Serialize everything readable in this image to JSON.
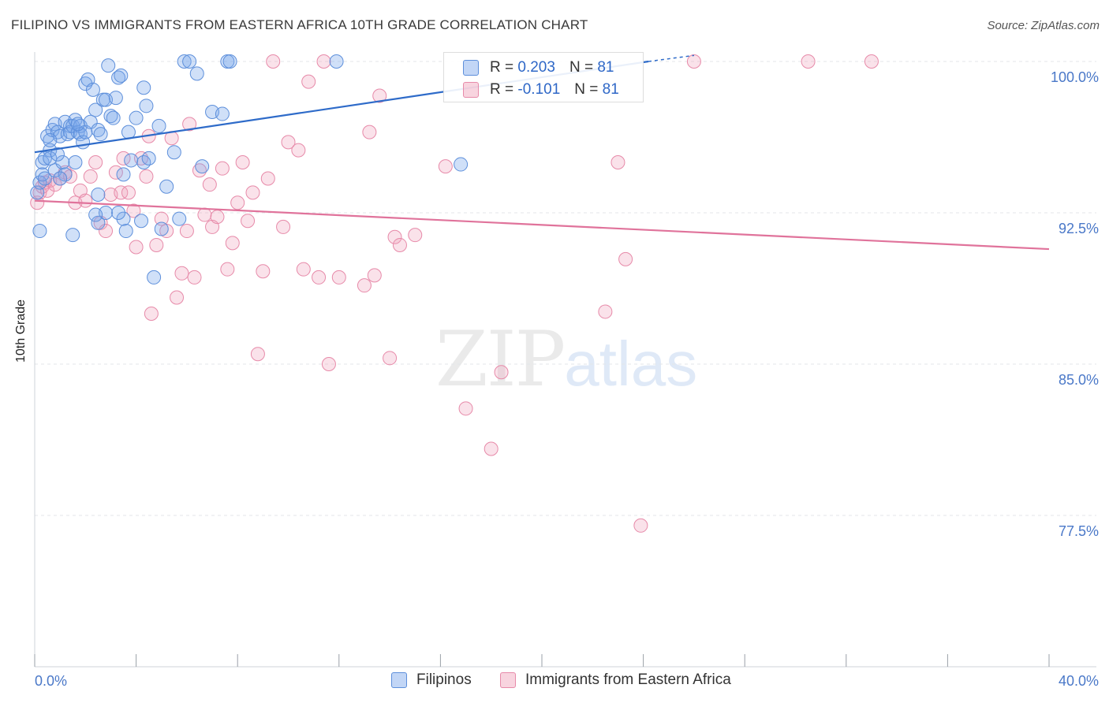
{
  "title": "FILIPINO VS IMMIGRANTS FROM EASTERN AFRICA 10TH GRADE CORRELATION CHART",
  "source": "Source: ZipAtlas.com",
  "watermark": {
    "zip": "ZIP",
    "atlas": "atlas"
  },
  "legend_top": {
    "row1": {
      "r_label": "R =",
      "r_value": "0.203",
      "n_label": "N =",
      "n_value": "81"
    },
    "row2": {
      "r_label": "R =",
      "r_value": "-0.101",
      "n_label": "N =",
      "n_value": "81"
    }
  },
  "colors": {
    "blue_fill": "rgba(120,165,235,0.35)",
    "blue_stroke": "#5d8fdb",
    "blue_line": "#2e6bc9",
    "pink_fill": "rgba(240,160,185,0.30)",
    "pink_stroke": "#e78aa9",
    "pink_line": "#e0739b",
    "grid": "#e3e6ea",
    "tick": "#4a78c8"
  },
  "chart_data": {
    "type": "scatter",
    "title": "FILIPINO VS IMMIGRANTS FROM EASTERN AFRICA 10TH GRADE CORRELATION CHART",
    "xlabel": "",
    "ylabel": "10th Grade",
    "xlim": [
      0,
      40
    ],
    "ylim": [
      70.0,
      101.0
    ],
    "x_tick_labels": [
      "0.0%",
      "40.0%"
    ],
    "y_ticks": [
      77.5,
      85.0,
      92.5,
      100.0
    ],
    "y_tick_labels": [
      "77.5%",
      "85.0%",
      "92.5%",
      "100.0%"
    ],
    "grid": true,
    "legend_position": "bottom",
    "series": [
      {
        "name": "Filipinos",
        "color": "blue",
        "r": 0.203,
        "n": 81,
        "trend": {
          "x": [
            0,
            24.2
          ],
          "y": [
            95.5,
            100.0
          ]
        },
        "points": [
          [
            0.1,
            93.5
          ],
          [
            0.2,
            94.0
          ],
          [
            0.2,
            91.6
          ],
          [
            0.3,
            95.0
          ],
          [
            0.3,
            94.4
          ],
          [
            0.4,
            95.2
          ],
          [
            0.5,
            96.3
          ],
          [
            0.6,
            95.6
          ],
          [
            0.6,
            95.2
          ],
          [
            0.7,
            96.6
          ],
          [
            0.8,
            96.9
          ],
          [
            0.8,
            94.6
          ],
          [
            0.9,
            96.5
          ],
          [
            1.0,
            96.3
          ],
          [
            1.1,
            95.0
          ],
          [
            1.2,
            97.0
          ],
          [
            1.2,
            94.4
          ],
          [
            1.3,
            96.4
          ],
          [
            1.4,
            96.8
          ],
          [
            1.4,
            96.5
          ],
          [
            1.5,
            96.8
          ],
          [
            1.6,
            97.1
          ],
          [
            1.6,
            95.0
          ],
          [
            1.7,
            96.5
          ],
          [
            1.8,
            96.8
          ],
          [
            1.8,
            96.4
          ],
          [
            1.9,
            96.0
          ],
          [
            2.0,
            98.9
          ],
          [
            2.0,
            96.5
          ],
          [
            2.1,
            99.1
          ],
          [
            2.2,
            97.0
          ],
          [
            2.3,
            98.6
          ],
          [
            2.4,
            97.6
          ],
          [
            2.5,
            96.6
          ],
          [
            2.5,
            93.4
          ],
          [
            2.6,
            96.4
          ],
          [
            2.7,
            98.1
          ],
          [
            2.8,
            98.1
          ],
          [
            2.9,
            99.8
          ],
          [
            3.0,
            97.3
          ],
          [
            3.1,
            97.2
          ],
          [
            3.2,
            98.2
          ],
          [
            3.3,
            99.2
          ],
          [
            3.4,
            99.3
          ],
          [
            3.5,
            94.4
          ],
          [
            3.6,
            91.6
          ],
          [
            3.7,
            96.5
          ],
          [
            3.8,
            95.1
          ],
          [
            4.0,
            97.2
          ],
          [
            4.2,
            92.1
          ],
          [
            4.3,
            95.0
          ],
          [
            4.4,
            97.8
          ],
          [
            4.5,
            95.2
          ],
          [
            4.7,
            89.3
          ],
          [
            4.9,
            96.8
          ],
          [
            5.0,
            91.7
          ],
          [
            5.2,
            93.8
          ],
          [
            5.5,
            95.5
          ],
          [
            5.7,
            92.2
          ],
          [
            5.9,
            100.0
          ],
          [
            6.1,
            100.0
          ],
          [
            6.4,
            99.4
          ],
          [
            6.6,
            94.8
          ],
          [
            7.0,
            97.5
          ],
          [
            7.4,
            97.4
          ],
          [
            7.6,
            100.0
          ],
          [
            7.7,
            100.0
          ],
          [
            11.9,
            100.0
          ],
          [
            16.8,
            94.9
          ],
          [
            2.5,
            92.0
          ],
          [
            3.5,
            92.2
          ],
          [
            1.5,
            91.4
          ],
          [
            2.8,
            92.5
          ],
          [
            0.4,
            94.2
          ],
          [
            1.0,
            94.2
          ],
          [
            0.6,
            96.1
          ],
          [
            3.3,
            92.5
          ],
          [
            4.3,
            98.7
          ],
          [
            2.4,
            92.4
          ],
          [
            1.7,
            96.9
          ],
          [
            0.9,
            95.4
          ]
        ]
      },
      {
        "name": "Immigrants from Eastern Africa",
        "color": "pink",
        "r": -0.101,
        "n": 81,
        "trend": {
          "x": [
            0,
            40
          ],
          "y": [
            93.1,
            90.7
          ]
        },
        "points": [
          [
            0.1,
            93.0
          ],
          [
            0.2,
            93.5
          ],
          [
            0.3,
            93.8
          ],
          [
            0.4,
            94.0
          ],
          [
            0.5,
            93.6
          ],
          [
            0.6,
            94.1
          ],
          [
            0.8,
            93.9
          ],
          [
            1.0,
            94.2
          ],
          [
            1.2,
            94.5
          ],
          [
            1.4,
            94.3
          ],
          [
            1.6,
            93.0
          ],
          [
            1.8,
            93.6
          ],
          [
            2.0,
            93.1
          ],
          [
            2.2,
            94.3
          ],
          [
            2.4,
            95.0
          ],
          [
            2.6,
            92.0
          ],
          [
            2.8,
            91.6
          ],
          [
            3.0,
            93.4
          ],
          [
            3.2,
            94.5
          ],
          [
            3.4,
            93.5
          ],
          [
            3.5,
            95.2
          ],
          [
            3.7,
            93.5
          ],
          [
            3.9,
            92.6
          ],
          [
            4.0,
            90.8
          ],
          [
            4.2,
            95.2
          ],
          [
            4.4,
            94.3
          ],
          [
            4.5,
            96.3
          ],
          [
            4.6,
            87.5
          ],
          [
            4.8,
            90.9
          ],
          [
            5.0,
            92.2
          ],
          [
            5.2,
            91.6
          ],
          [
            5.4,
            96.2
          ],
          [
            5.6,
            88.3
          ],
          [
            5.8,
            89.5
          ],
          [
            6.0,
            91.6
          ],
          [
            6.1,
            96.9
          ],
          [
            6.3,
            89.3
          ],
          [
            6.5,
            94.6
          ],
          [
            6.7,
            92.4
          ],
          [
            6.9,
            93.9
          ],
          [
            7.0,
            91.8
          ],
          [
            7.2,
            92.3
          ],
          [
            7.4,
            94.7
          ],
          [
            7.6,
            89.7
          ],
          [
            7.8,
            91.0
          ],
          [
            8.0,
            93.0
          ],
          [
            8.2,
            95.0
          ],
          [
            8.4,
            92.1
          ],
          [
            8.6,
            93.5
          ],
          [
            8.8,
            85.5
          ],
          [
            9.0,
            89.6
          ],
          [
            9.2,
            94.2
          ],
          [
            9.4,
            100.0
          ],
          [
            9.8,
            91.8
          ],
          [
            10.0,
            96.0
          ],
          [
            10.4,
            95.6
          ],
          [
            10.6,
            89.7
          ],
          [
            10.8,
            99.0
          ],
          [
            11.2,
            89.3
          ],
          [
            11.4,
            100.0
          ],
          [
            11.6,
            85.0
          ],
          [
            12.0,
            89.3
          ],
          [
            13.0,
            88.9
          ],
          [
            13.2,
            96.5
          ],
          [
            13.4,
            89.4
          ],
          [
            13.6,
            98.3
          ],
          [
            14.0,
            85.3
          ],
          [
            14.2,
            91.3
          ],
          [
            14.4,
            90.9
          ],
          [
            15.0,
            91.4
          ],
          [
            16.2,
            94.8
          ],
          [
            17.0,
            82.8
          ],
          [
            18.0,
            80.8
          ],
          [
            18.4,
            84.6
          ],
          [
            22.5,
            87.6
          ],
          [
            23.0,
            95.0
          ],
          [
            23.3,
            90.2
          ],
          [
            23.9,
            77.0
          ],
          [
            26.0,
            100.0
          ],
          [
            30.5,
            100.0
          ],
          [
            33.0,
            100.0
          ]
        ]
      }
    ]
  },
  "bottom_legend": {
    "item1": "Filipinos",
    "item2": "Immigrants from Eastern Africa"
  }
}
